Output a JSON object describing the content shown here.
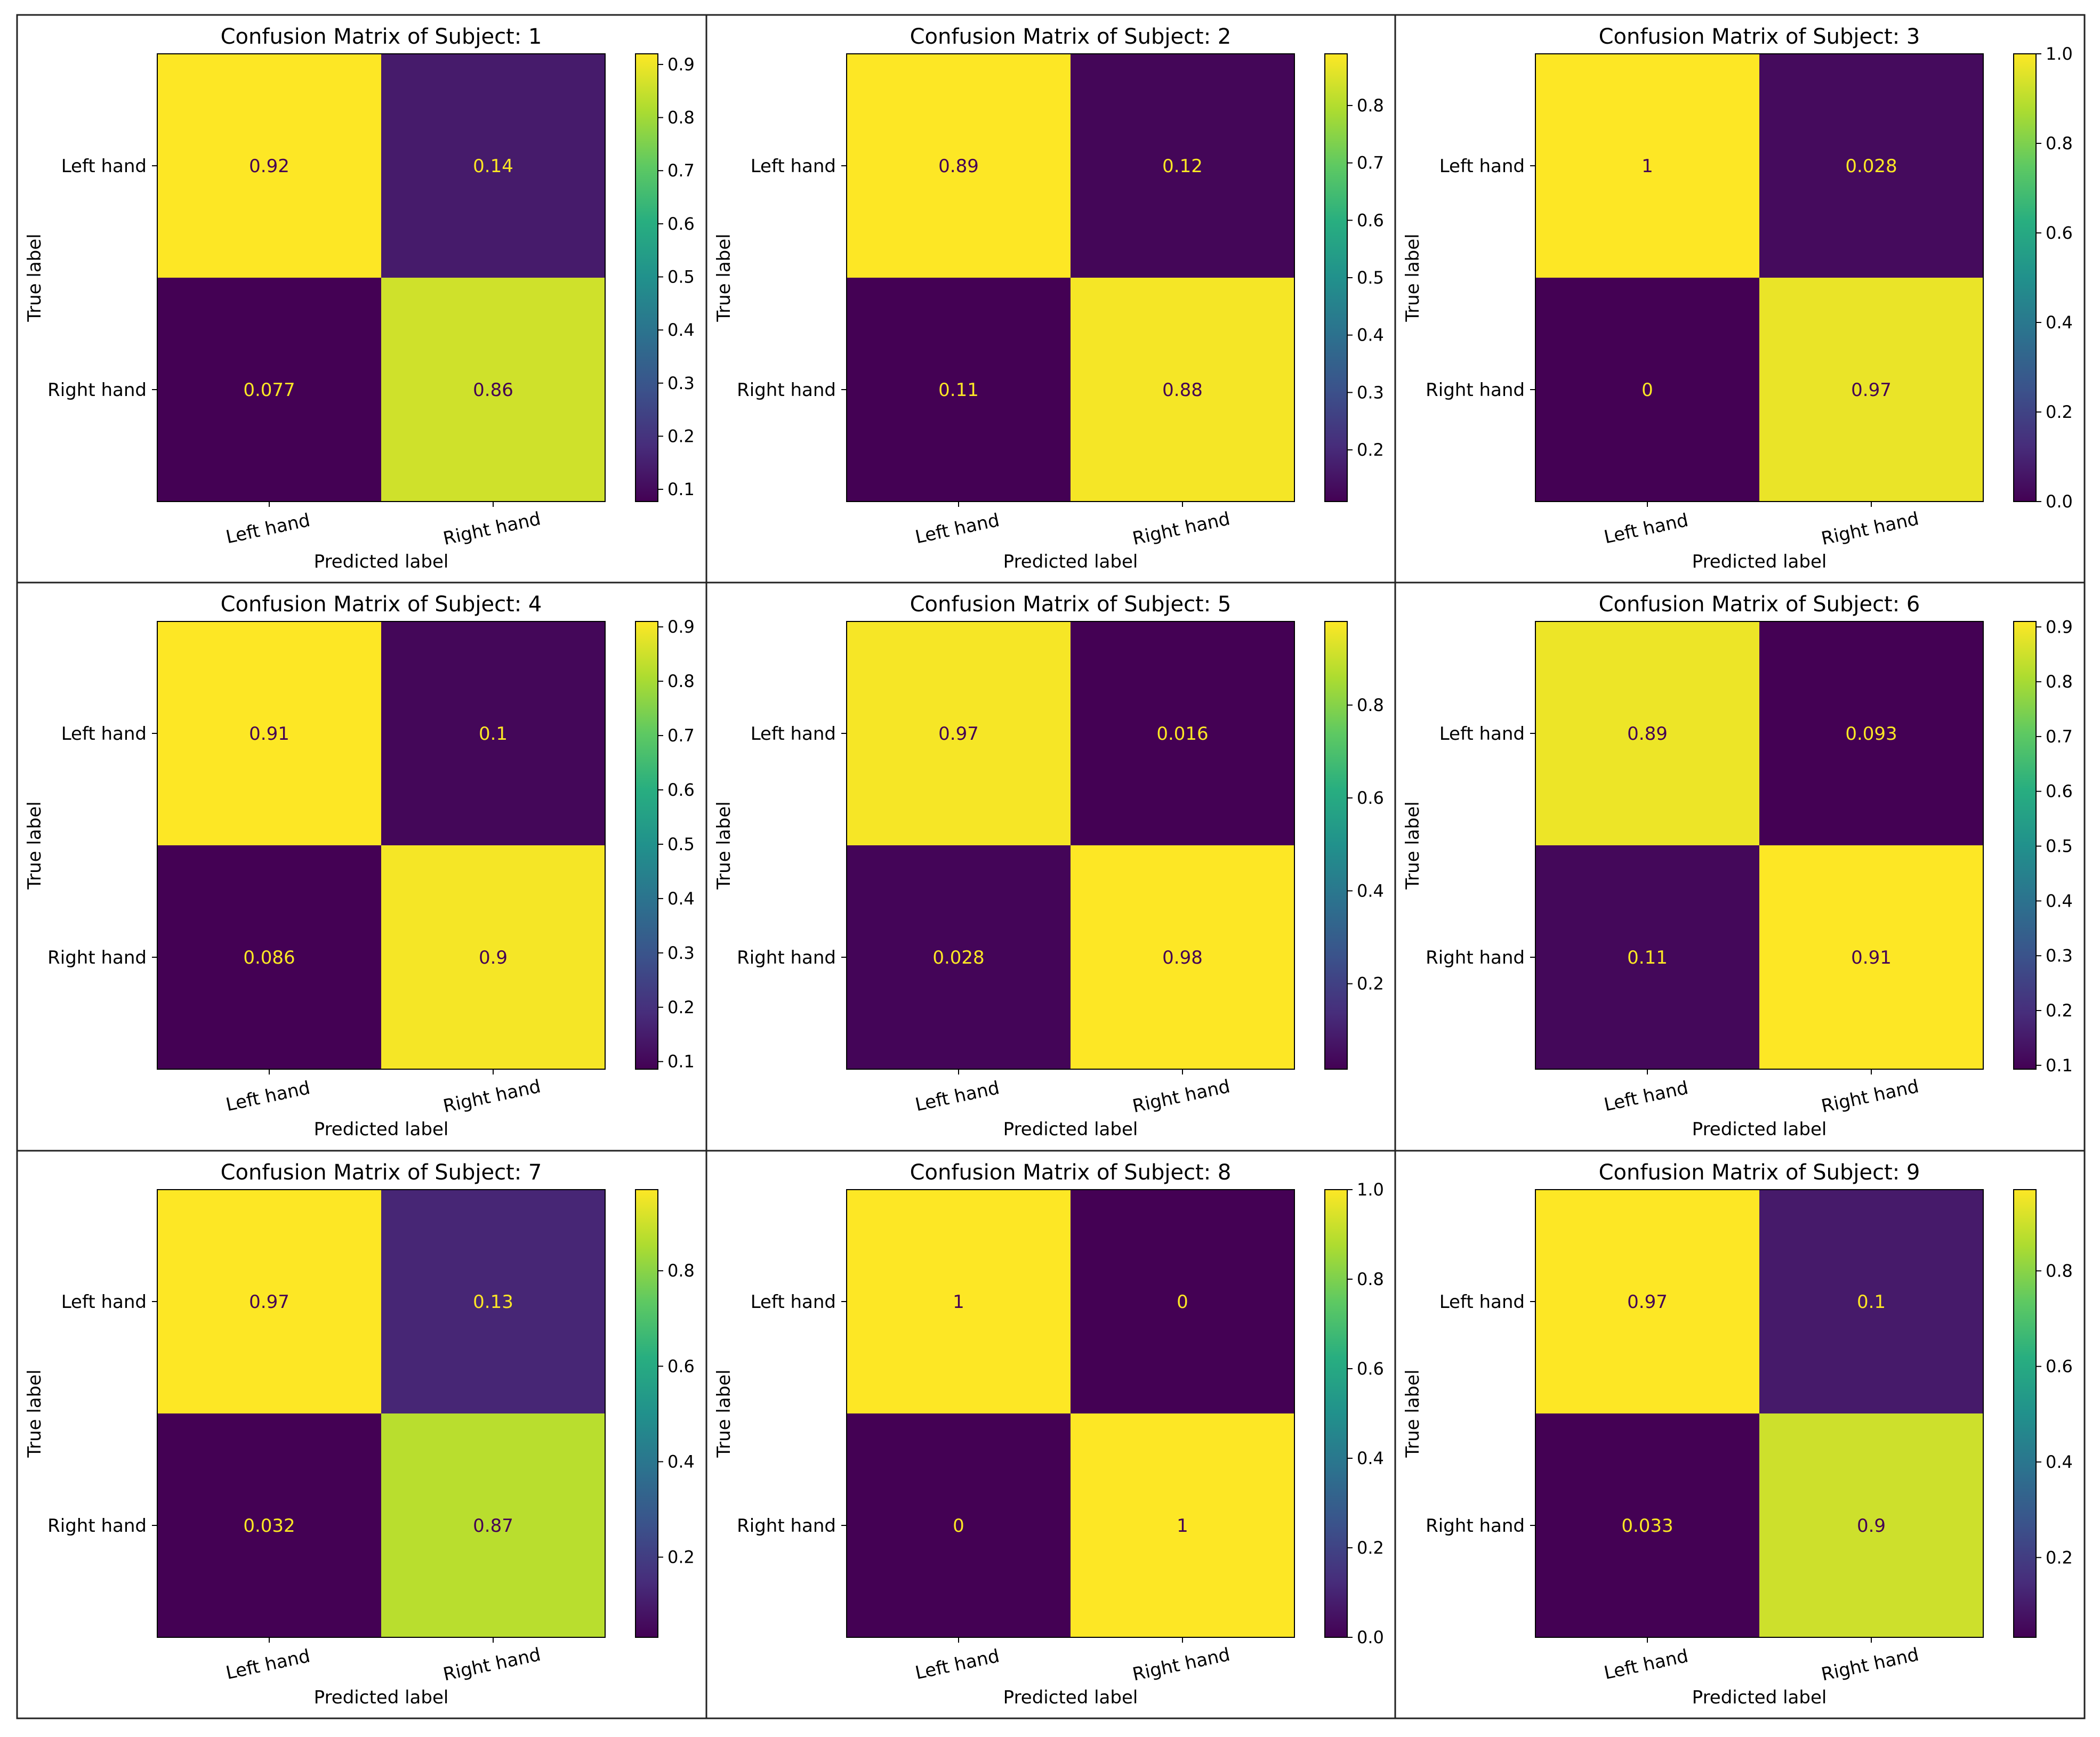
{
  "chart_data": [
    {
      "type": "heatmap",
      "title": "Confusion Matrix of Subject: 1",
      "xlabel": "Predicted label",
      "ylabel": "True label",
      "x_categories": [
        "Left hand",
        "Right hand"
      ],
      "y_categories": [
        "Left hand",
        "Right hand"
      ],
      "cells": [
        {
          "v": 0.92,
          "label": "0.92"
        },
        {
          "v": 0.14,
          "label": "0.14"
        },
        {
          "v": 0.077,
          "label": "0.077"
        },
        {
          "v": 0.86,
          "label": "0.86"
        }
      ],
      "colorbar": {
        "vmin": 0.077,
        "vmax": 0.92,
        "ticks": [
          0.1,
          0.2,
          0.3,
          0.4,
          0.5,
          0.6,
          0.7,
          0.8,
          0.9
        ],
        "tick_labels": [
          "0.1",
          "0.2",
          "0.3",
          "0.4",
          "0.5",
          "0.6",
          "0.7",
          "0.8",
          "0.9"
        ]
      }
    },
    {
      "type": "heatmap",
      "title": "Confusion Matrix of Subject: 2",
      "xlabel": "Predicted label",
      "ylabel": "True label",
      "x_categories": [
        "Left hand",
        "Right hand"
      ],
      "y_categories": [
        "Left hand",
        "Right hand"
      ],
      "cells": [
        {
          "v": 0.89,
          "label": "0.89"
        },
        {
          "v": 0.12,
          "label": "0.12"
        },
        {
          "v": 0.11,
          "label": "0.11"
        },
        {
          "v": 0.88,
          "label": "0.88"
        }
      ],
      "colorbar": {
        "vmin": 0.11,
        "vmax": 0.89,
        "ticks": [
          0.2,
          0.3,
          0.4,
          0.5,
          0.6,
          0.7,
          0.8
        ],
        "tick_labels": [
          "0.2",
          "0.3",
          "0.4",
          "0.5",
          "0.6",
          "0.7",
          "0.8"
        ]
      }
    },
    {
      "type": "heatmap",
      "title": "Confusion Matrix of Subject: 3",
      "xlabel": "Predicted label",
      "ylabel": "True label",
      "x_categories": [
        "Left hand",
        "Right hand"
      ],
      "y_categories": [
        "Left hand",
        "Right hand"
      ],
      "cells": [
        {
          "v": 1.0,
          "label": "1"
        },
        {
          "v": 0.028,
          "label": "0.028"
        },
        {
          "v": 0.0,
          "label": "0"
        },
        {
          "v": 0.97,
          "label": "0.97"
        }
      ],
      "colorbar": {
        "vmin": 0.0,
        "vmax": 1.0,
        "ticks": [
          0.0,
          0.2,
          0.4,
          0.6,
          0.8,
          1.0
        ],
        "tick_labels": [
          "0.0",
          "0.2",
          "0.4",
          "0.6",
          "0.8",
          "1.0"
        ]
      }
    },
    {
      "type": "heatmap",
      "title": "Confusion Matrix of Subject: 4",
      "xlabel": "Predicted label",
      "ylabel": "True label",
      "x_categories": [
        "Left hand",
        "Right hand"
      ],
      "y_categories": [
        "Left hand",
        "Right hand"
      ],
      "cells": [
        {
          "v": 0.91,
          "label": "0.91"
        },
        {
          "v": 0.1,
          "label": "0.1"
        },
        {
          "v": 0.086,
          "label": "0.086"
        },
        {
          "v": 0.9,
          "label": "0.9"
        }
      ],
      "colorbar": {
        "vmin": 0.086,
        "vmax": 0.91,
        "ticks": [
          0.1,
          0.2,
          0.3,
          0.4,
          0.5,
          0.6,
          0.7,
          0.8,
          0.9
        ],
        "tick_labels": [
          "0.1",
          "0.2",
          "0.3",
          "0.4",
          "0.5",
          "0.6",
          "0.7",
          "0.8",
          "0.9"
        ]
      }
    },
    {
      "type": "heatmap",
      "title": "Confusion Matrix of Subject: 5",
      "xlabel": "Predicted label",
      "ylabel": "True label",
      "x_categories": [
        "Left hand",
        "Right hand"
      ],
      "y_categories": [
        "Left hand",
        "Right hand"
      ],
      "cells": [
        {
          "v": 0.97,
          "label": "0.97"
        },
        {
          "v": 0.016,
          "label": "0.016"
        },
        {
          "v": 0.028,
          "label": "0.028"
        },
        {
          "v": 0.98,
          "label": "0.98"
        }
      ],
      "colorbar": {
        "vmin": 0.016,
        "vmax": 0.98,
        "ticks": [
          0.2,
          0.4,
          0.6,
          0.8
        ],
        "tick_labels": [
          "0.2",
          "0.4",
          "0.6",
          "0.8"
        ]
      }
    },
    {
      "type": "heatmap",
      "title": "Confusion Matrix of Subject: 6",
      "xlabel": "Predicted label",
      "ylabel": "True label",
      "x_categories": [
        "Left hand",
        "Right hand"
      ],
      "y_categories": [
        "Left hand",
        "Right hand"
      ],
      "cells": [
        {
          "v": 0.89,
          "label": "0.89"
        },
        {
          "v": 0.093,
          "label": "0.093"
        },
        {
          "v": 0.11,
          "label": "0.11"
        },
        {
          "v": 0.91,
          "label": "0.91"
        }
      ],
      "colorbar": {
        "vmin": 0.093,
        "vmax": 0.91,
        "ticks": [
          0.1,
          0.2,
          0.3,
          0.4,
          0.5,
          0.6,
          0.7,
          0.8,
          0.9
        ],
        "tick_labels": [
          "0.1",
          "0.2",
          "0.3",
          "0.4",
          "0.5",
          "0.6",
          "0.7",
          "0.8",
          "0.9"
        ]
      }
    },
    {
      "type": "heatmap",
      "title": "Confusion Matrix of Subject: 7",
      "xlabel": "Predicted label",
      "ylabel": "True label",
      "x_categories": [
        "Left hand",
        "Right hand"
      ],
      "y_categories": [
        "Left hand",
        "Right hand"
      ],
      "cells": [
        {
          "v": 0.97,
          "label": "0.97"
        },
        {
          "v": 0.13,
          "label": "0.13"
        },
        {
          "v": 0.032,
          "label": "0.032"
        },
        {
          "v": 0.87,
          "label": "0.87"
        }
      ],
      "colorbar": {
        "vmin": 0.032,
        "vmax": 0.97,
        "ticks": [
          0.2,
          0.4,
          0.6,
          0.8
        ],
        "tick_labels": [
          "0.2",
          "0.4",
          "0.6",
          "0.8"
        ]
      }
    },
    {
      "type": "heatmap",
      "title": "Confusion Matrix of Subject: 8",
      "xlabel": "Predicted label",
      "ylabel": "True label",
      "x_categories": [
        "Left hand",
        "Right hand"
      ],
      "y_categories": [
        "Left hand",
        "Right hand"
      ],
      "cells": [
        {
          "v": 1.0,
          "label": "1"
        },
        {
          "v": 0.0,
          "label": "0"
        },
        {
          "v": 0.0,
          "label": "0"
        },
        {
          "v": 1.0,
          "label": "1"
        }
      ],
      "colorbar": {
        "vmin": 0.0,
        "vmax": 1.0,
        "ticks": [
          0.0,
          0.2,
          0.4,
          0.6,
          0.8,
          1.0
        ],
        "tick_labels": [
          "0.0",
          "0.2",
          "0.4",
          "0.6",
          "0.8",
          "1.0"
        ]
      }
    },
    {
      "type": "heatmap",
      "title": "Confusion Matrix of Subject: 9",
      "xlabel": "Predicted label",
      "ylabel": "True label",
      "x_categories": [
        "Left hand",
        "Right hand"
      ],
      "y_categories": [
        "Left hand",
        "Right hand"
      ],
      "cells": [
        {
          "v": 0.97,
          "label": "0.97"
        },
        {
          "v": 0.1,
          "label": "0.1"
        },
        {
          "v": 0.033,
          "label": "0.033"
        },
        {
          "v": 0.9,
          "label": "0.9"
        }
      ],
      "colorbar": {
        "vmin": 0.033,
        "vmax": 0.97,
        "ticks": [
          0.2,
          0.4,
          0.6,
          0.8
        ],
        "tick_labels": [
          "0.2",
          "0.4",
          "0.6",
          "0.8"
        ]
      }
    }
  ]
}
